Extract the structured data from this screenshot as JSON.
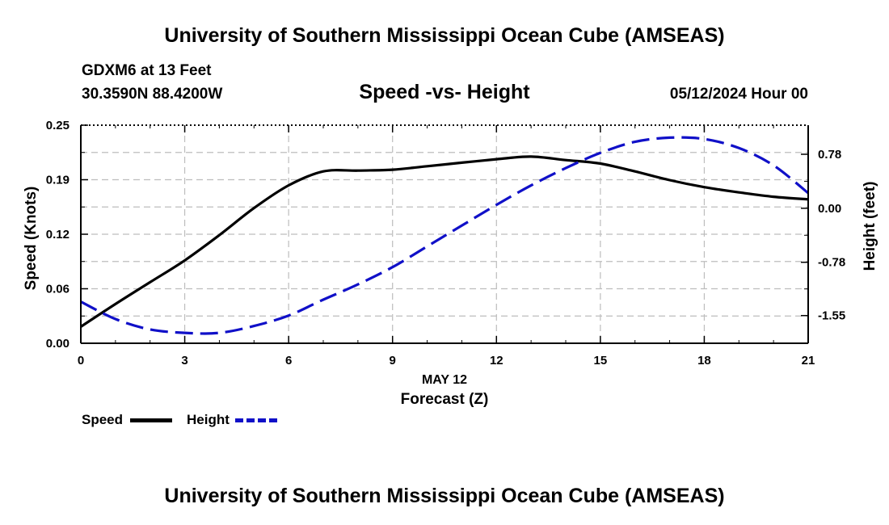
{
  "header": {
    "title": "University of Southern Mississippi Ocean Cube (AMSEAS)",
    "station": "GDXM6 at 13 Feet",
    "coords": "30.3590N  88.4200W",
    "subtitle": "Speed -vs- Height",
    "datetime": "05/12/2024 Hour 00"
  },
  "footer": {
    "title": "University of Southern Mississippi Ocean Cube (AMSEAS)"
  },
  "legend": {
    "speed_label": "Speed",
    "height_label": "Height"
  },
  "colors": {
    "speed": "#000000",
    "height": "#1010c8",
    "grid": "#bdbdbd"
  },
  "chart_data": {
    "type": "line",
    "title": "Speed -vs- Height",
    "xlabel": "Forecast (Z)",
    "xlabel_date": "MAY 12",
    "ylabel": "Speed (Knots)",
    "y2label": "Height (feet)",
    "xlim": [
      0,
      21
    ],
    "ylim": [
      0,
      0.25
    ],
    "y2lim": [
      -1.95,
      1.2
    ],
    "x_ticks": [
      0,
      3,
      6,
      9,
      12,
      15,
      18,
      21
    ],
    "x_tick_labels": [
      "0",
      "3",
      "6",
      "9",
      "12",
      "15",
      "18",
      "21"
    ],
    "y_ticks": [
      0,
      0.0625,
      0.125,
      0.1875,
      0.25
    ],
    "y_tick_labels": [
      "0.00",
      "0.06",
      "0.12",
      "0.19",
      "0.25"
    ],
    "y2_ticks": [
      -1.55,
      -0.78,
      0.0,
      0.78
    ],
    "y2_tick_labels": [
      "-1.55",
      "-0.78",
      "0.00",
      "0.78"
    ],
    "grid": true,
    "legend_position": "bottom-left",
    "series": [
      {
        "name": "Speed",
        "axis": "left",
        "x": [
          0,
          1,
          2,
          3,
          4,
          5,
          6,
          7,
          8,
          9,
          10,
          11,
          12,
          13,
          14,
          15,
          16,
          17,
          18,
          19,
          20,
          21
        ],
        "values": [
          0.019,
          0.045,
          0.07,
          0.095,
          0.124,
          0.155,
          0.181,
          0.197,
          0.198,
          0.199,
          0.203,
          0.207,
          0.211,
          0.214,
          0.21,
          0.206,
          0.197,
          0.187,
          0.179,
          0.173,
          0.168,
          0.165
        ]
      },
      {
        "name": "Height",
        "axis": "right",
        "x": [
          0,
          1,
          2,
          3,
          4,
          5,
          6,
          7,
          8,
          9,
          10,
          11,
          12,
          13,
          14,
          15,
          16,
          17,
          18,
          19,
          20,
          21
        ],
        "values": [
          -1.35,
          -1.6,
          -1.75,
          -1.8,
          -1.8,
          -1.7,
          -1.55,
          -1.32,
          -1.1,
          -0.85,
          -0.55,
          -0.25,
          0.05,
          0.33,
          0.58,
          0.8,
          0.96,
          1.02,
          1.0,
          0.87,
          0.62,
          0.22
        ]
      }
    ]
  }
}
